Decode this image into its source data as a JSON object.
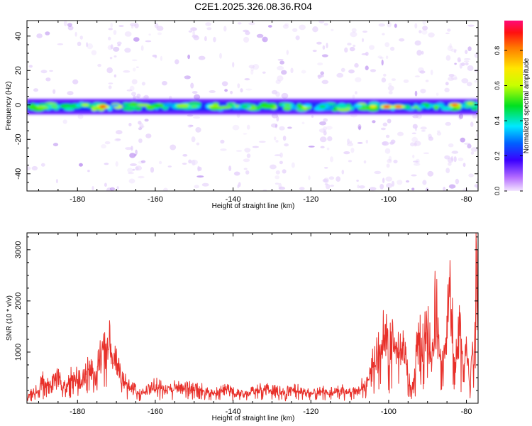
{
  "title": "C2E1.2025.326.08.36.R04",
  "chart_data": [
    {
      "type": "heatmap",
      "xlabel": "Height of straight line (km)",
      "ylabel": "Frequency (Hz)",
      "xlim": [
        -193,
        -77
      ],
      "ylim": [
        -50,
        49
      ],
      "xticks": [
        -180,
        -160,
        -140,
        -120,
        -100,
        -80
      ],
      "yticks": [
        -40,
        -20,
        0,
        20,
        40
      ],
      "colorbar": {
        "label": "Normalized spectral amplitude",
        "range": [
          0,
          0.97
        ],
        "ticks": [
          0.0,
          0.2,
          0.4,
          0.6,
          0.8
        ]
      },
      "band": {
        "center_hz": -1,
        "halfwidth_hz": 3
      },
      "hotspots": [
        {
          "x": -173.5,
          "y": -1,
          "amp": 0.9
        },
        {
          "x": -178,
          "y": 0,
          "amp": 0.6
        },
        {
          "x": -186,
          "y": -1,
          "amp": 0.55
        },
        {
          "x": -150,
          "y": -1,
          "amp": 0.55
        },
        {
          "x": -137,
          "y": -1,
          "amp": 0.5
        },
        {
          "x": -126,
          "y": 0,
          "amp": 0.55
        },
        {
          "x": -117,
          "y": -1,
          "amp": 0.5
        },
        {
          "x": -104,
          "y": -1,
          "amp": 0.7
        },
        {
          "x": -100.5,
          "y": -1,
          "amp": 0.9
        },
        {
          "x": -97.5,
          "y": -1,
          "amp": 0.85
        },
        {
          "x": -83,
          "y": 0,
          "amp": 0.85
        },
        {
          "x": -79,
          "y": 1,
          "amp": 0.6
        }
      ]
    },
    {
      "type": "line",
      "xlabel": "Height of straight line (km)",
      "ylabel": "SNR (10 * v/v)",
      "xlim": [
        -193,
        -77
      ],
      "ylim": [
        0,
        3330
      ],
      "xticks": [
        -180,
        -160,
        -140,
        -120,
        -100,
        -80
      ],
      "yticks": [
        1000,
        2000,
        3000
      ],
      "color": "#e8302a",
      "series": [
        {
          "name": "SNR",
          "x": [
            -193,
            -191,
            -189,
            -187,
            -185,
            -183,
            -181,
            -179,
            -177,
            -175.5,
            -174,
            -173,
            -172.3,
            -171,
            -169,
            -167,
            -165,
            -163,
            -160,
            -157,
            -154,
            -151,
            -148,
            -145,
            -142,
            -139,
            -136,
            -133,
            -130,
            -127,
            -124,
            -121,
            -118,
            -115,
            -112,
            -110,
            -108,
            -106,
            -104,
            -102,
            -101,
            -100,
            -99,
            -97.5,
            -96,
            -95,
            -94,
            -93,
            -92,
            -91,
            -90,
            -89,
            -88,
            -87,
            -86,
            -85,
            -84.3,
            -83.5,
            -83,
            -82,
            -81,
            -80,
            -79.5,
            -79,
            -78.5,
            -78,
            -77.5,
            -77
          ],
          "values": [
            180,
            260,
            520,
            380,
            600,
            420,
            650,
            500,
            800,
            650,
            1050,
            1250,
            1550,
            1100,
            650,
            420,
            300,
            230,
            420,
            300,
            400,
            350,
            330,
            230,
            320,
            240,
            230,
            350,
            300,
            260,
            340,
            230,
            300,
            250,
            320,
            260,
            330,
            480,
            900,
            1250,
            1700,
            1100,
            1650,
            1150,
            1300,
            600,
            250,
            900,
            2200,
            1400,
            1800,
            1000,
            2400,
            1400,
            700,
            2100,
            2700,
            1600,
            900,
            1700,
            1050,
            1300,
            800,
            400,
            1500,
            1000,
            3300,
            2400
          ]
        }
      ]
    }
  ]
}
